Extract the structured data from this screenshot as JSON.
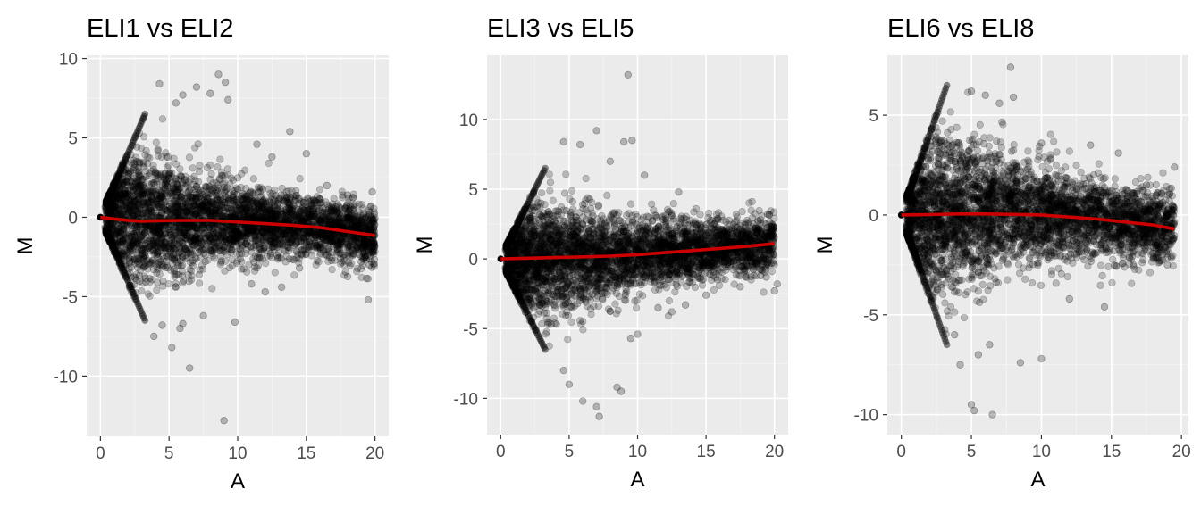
{
  "figure": {
    "background": "#ffffff",
    "panel_background": "#ebebeb",
    "point_color": "#000000",
    "fit_color": "#cc0000"
  },
  "chart_data": [
    {
      "type": "scatter",
      "title": "ELI1  vs  ELI2",
      "xlabel": "A",
      "ylabel": "M",
      "xlim": [
        -1,
        21
      ],
      "ylim": [
        -13.8,
        10.2
      ],
      "xticks": [
        0,
        5,
        10,
        15,
        20
      ],
      "yticks": [
        10,
        5,
        0,
        -5,
        -10
      ],
      "grid": true,
      "legend": "none",
      "fit": {
        "x": [
          0,
          1,
          2,
          3,
          4,
          6,
          8,
          10,
          12,
          14,
          16,
          18,
          20
        ],
        "y": [
          0,
          -0.1,
          -0.2,
          -0.25,
          -0.22,
          -0.2,
          -0.2,
          -0.3,
          -0.4,
          -0.5,
          -0.65,
          -0.9,
          -1.15
        ]
      },
      "cloud": {
        "edge_slope": 2,
        "start": 0.4,
        "xmax": 20,
        "spread": [
          [
            1.8,
            2.4
          ],
          [
            4,
            1.9
          ],
          [
            7,
            1.5
          ],
          [
            10,
            1.2
          ],
          [
            13,
            1.0
          ],
          [
            16,
            0.9
          ],
          [
            20,
            1.0
          ]
        ],
        "n": 4200,
        "seed": 11
      },
      "outliers": [
        [
          8.6,
          9.0
        ],
        [
          9.1,
          8.5
        ],
        [
          4.3,
          8.4
        ],
        [
          7.0,
          8.2
        ],
        [
          8.0,
          7.8
        ],
        [
          6.0,
          7.7
        ],
        [
          9.3,
          7.4
        ],
        [
          5.5,
          7.2
        ],
        [
          13.8,
          5.4
        ],
        [
          11.4,
          4.6
        ],
        [
          12.5,
          3.8
        ],
        [
          15.0,
          4.0
        ],
        [
          19.8,
          1.6
        ],
        [
          18.0,
          1.4
        ],
        [
          16.5,
          2.0
        ],
        [
          19.0,
          -2.8
        ],
        [
          19.6,
          -3.0
        ],
        [
          19.5,
          -5.2
        ],
        [
          17.5,
          -2.6
        ],
        [
          14.5,
          -3.2
        ],
        [
          12.0,
          -4.7
        ],
        [
          13.2,
          -4.4
        ],
        [
          9.8,
          -6.6
        ],
        [
          6.5,
          -9.5
        ],
        [
          5.2,
          -8.2
        ],
        [
          9.0,
          -12.8
        ],
        [
          6.0,
          -6.7
        ],
        [
          5.8,
          -7.0
        ],
        [
          4.5,
          -6.8
        ],
        [
          7.5,
          -6.2
        ],
        [
          11.0,
          -4.2
        ],
        [
          3.9,
          -7.5
        ]
      ]
    },
    {
      "type": "scatter",
      "title": "ELI3  vs  ELI5",
      "xlabel": "A",
      "ylabel": "M",
      "xlim": [
        -1,
        21
      ],
      "ylim": [
        -12.6,
        14.6
      ],
      "xticks": [
        0,
        5,
        10,
        15,
        20
      ],
      "yticks": [
        10,
        5,
        0,
        -5,
        -10
      ],
      "grid": true,
      "legend": "none",
      "fit": {
        "x": [
          0,
          2,
          4,
          6,
          8,
          10,
          12,
          14,
          16,
          18,
          20
        ],
        "y": [
          0,
          0.05,
          0.1,
          0.15,
          0.2,
          0.3,
          0.45,
          0.6,
          0.75,
          0.9,
          1.1
        ]
      },
      "cloud": {
        "edge_slope": 2,
        "start": 0.4,
        "xmax": 20,
        "spread": [
          [
            1.8,
            2.3
          ],
          [
            4,
            2.0
          ],
          [
            7,
            1.6
          ],
          [
            10,
            1.3
          ],
          [
            13,
            1.1
          ],
          [
            16,
            1.0
          ],
          [
            20,
            1.0
          ]
        ],
        "n": 4200,
        "seed": 23
      },
      "outliers": [
        [
          9.3,
          13.2
        ],
        [
          9.6,
          8.5
        ],
        [
          9.0,
          8.4
        ],
        [
          7.0,
          9.2
        ],
        [
          4.6,
          8.4
        ],
        [
          8.0,
          7.0
        ],
        [
          5.8,
          8.2
        ],
        [
          10.5,
          6.0
        ],
        [
          13.0,
          4.8
        ],
        [
          19.5,
          3.2
        ],
        [
          16.5,
          2.2
        ],
        [
          18.0,
          1.5
        ],
        [
          20.2,
          -1.8
        ],
        [
          19.4,
          -1.3
        ],
        [
          19.0,
          -1.2
        ],
        [
          17.5,
          -2.0
        ],
        [
          20.0,
          -2.3
        ],
        [
          11.5,
          -3.5
        ],
        [
          12.5,
          -3.8
        ],
        [
          8.5,
          -9.2
        ],
        [
          8.8,
          -9.5
        ],
        [
          7.2,
          -11.3
        ],
        [
          6.0,
          -10.2
        ],
        [
          7.0,
          -10.6
        ],
        [
          5.0,
          -9.0
        ],
        [
          4.6,
          -8.0
        ],
        [
          9.5,
          -5.7
        ],
        [
          10.0,
          -5.4
        ],
        [
          13.5,
          -3.3
        ],
        [
          15.0,
          -2.6
        ]
      ]
    },
    {
      "type": "scatter",
      "title": "ELI6  vs  ELI8",
      "xlabel": "A",
      "ylabel": "M",
      "xlim": [
        -1,
        20.5
      ],
      "ylim": [
        -11,
        8
      ],
      "xticks": [
        0,
        5,
        10,
        15,
        20
      ],
      "yticks": [
        5,
        0,
        -5,
        -10
      ],
      "grid": true,
      "legend": "none",
      "fit": {
        "x": [
          0,
          2,
          4,
          6,
          8,
          10,
          12,
          14,
          16,
          18,
          19.5
        ],
        "y": [
          0,
          0.02,
          0.05,
          0.05,
          0.03,
          0,
          -0.1,
          -0.2,
          -0.35,
          -0.5,
          -0.7
        ]
      },
      "cloud": {
        "edge_slope": 2,
        "start": 0.4,
        "xmax": 19.5,
        "spread": [
          [
            1.8,
            2.3
          ],
          [
            4,
            1.9
          ],
          [
            7,
            1.5
          ],
          [
            10,
            1.2
          ],
          [
            13,
            1.0
          ],
          [
            16,
            0.9
          ],
          [
            19.5,
            0.9
          ]
        ],
        "n": 4200,
        "seed": 37
      },
      "outliers": [
        [
          7.8,
          7.4
        ],
        [
          5.0,
          6.2
        ],
        [
          6.0,
          6.0
        ],
        [
          7.0,
          5.6
        ],
        [
          8.0,
          5.9
        ],
        [
          10.0,
          3.6
        ],
        [
          13.5,
          3.5
        ],
        [
          15.5,
          3.1
        ],
        [
          19.5,
          2.4
        ],
        [
          17.5,
          1.5
        ],
        [
          19.0,
          -2.5
        ],
        [
          18.0,
          -1.6
        ],
        [
          16.5,
          -1.4
        ],
        [
          14.5,
          -4.6
        ],
        [
          12.0,
          -4.2
        ],
        [
          10.0,
          -7.2
        ],
        [
          8.5,
          -7.4
        ],
        [
          6.5,
          -10.0
        ],
        [
          5.0,
          -9.5
        ],
        [
          5.2,
          -9.8
        ],
        [
          6.3,
          -6.5
        ],
        [
          5.5,
          -7.0
        ],
        [
          4.2,
          -7.5
        ],
        [
          3.8,
          -6.0
        ]
      ]
    }
  ]
}
